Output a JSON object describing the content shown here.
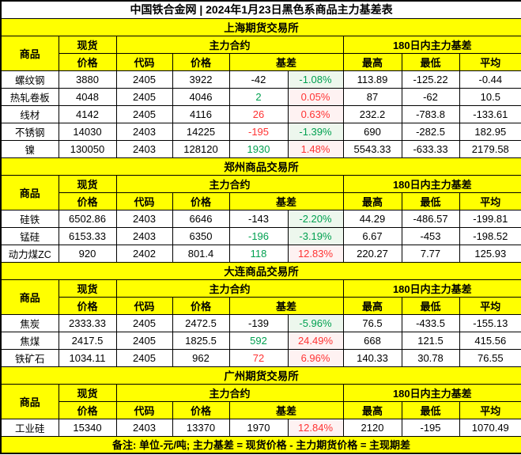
{
  "colors": {
    "yellow": "#FFFF00",
    "black": "#000000",
    "green": "#00A050",
    "red": "#FF3333",
    "green_bg": "#EDF7ED",
    "red_bg": "#FEF2F2",
    "white": "#FFFFFF"
  },
  "header": {
    "commodity": "商品",
    "spot": "现货",
    "spot_price": "价格",
    "main_contract": "主力合约",
    "code": "代码",
    "price": "价格",
    "basis": "基差",
    "range_180": "180日内主力基差",
    "high": "最高",
    "low": "最低",
    "avg": "平均"
  },
  "chart_data": {
    "type": "table",
    "title": "中国铁合金网 | 2024年1月23日黑色系商品主力基差表",
    "footer": "备注: 单位-元/吨; 主力基差 = 现货价格 - 主力期货价格 = 主现期差",
    "columns": [
      "商品",
      "现货价格",
      "主力合约代码",
      "主力合约价格",
      "基差",
      "基差%",
      "180日最高",
      "180日最低",
      "180日平均"
    ],
    "sections": [
      {
        "name": "上海期货交易所",
        "rows": [
          {
            "cells": [
              "螺纹钢",
              "3880",
              "2405",
              "3922",
              "-42",
              "-1.08%",
              "113.89",
              "-125.22",
              "-0.44"
            ],
            "basis_color": "black",
            "pct_color": "green"
          },
          {
            "cells": [
              "热轧卷板",
              "4048",
              "2405",
              "4046",
              "2",
              "0.05%",
              "87",
              "-62",
              "10.5"
            ],
            "basis_color": "green",
            "pct_color": "red"
          },
          {
            "cells": [
              "线材",
              "4142",
              "2405",
              "4116",
              "26",
              "0.63%",
              "232.2",
              "-783.8",
              "-133.61"
            ],
            "basis_color": "red",
            "pct_color": "red"
          },
          {
            "cells": [
              "不锈钢",
              "14030",
              "2403",
              "14225",
              "-195",
              "-1.39%",
              "690",
              "-282.5",
              "182.95"
            ],
            "basis_color": "red",
            "pct_color": "green"
          },
          {
            "cells": [
              "镍",
              "130050",
              "2403",
              "128120",
              "1930",
              "1.48%",
              "5543.33",
              "-633.33",
              "2179.58"
            ],
            "basis_color": "green",
            "pct_color": "red"
          }
        ]
      },
      {
        "name": "郑州商品交易所",
        "rows": [
          {
            "cells": [
              "硅铁",
              "6502.86",
              "2403",
              "6646",
              "-143",
              "-2.20%",
              "44.29",
              "-486.57",
              "-199.81"
            ],
            "basis_color": "black",
            "pct_color": "green"
          },
          {
            "cells": [
              "锰硅",
              "6153.33",
              "2403",
              "6350",
              "-196",
              "-3.19%",
              "6.67",
              "-453",
              "-198.52"
            ],
            "basis_color": "green",
            "pct_color": "green"
          },
          {
            "cells": [
              "动力煤ZC",
              "920",
              "2402",
              "801.4",
              "118",
              "12.83%",
              "220.27",
              "7.77",
              "125.93"
            ],
            "basis_color": "green",
            "pct_color": "red"
          }
        ]
      },
      {
        "name": "大连商品交易所",
        "rows": [
          {
            "cells": [
              "焦炭",
              "2333.33",
              "2405",
              "2472.5",
              "-139",
              "-5.96%",
              "76.5",
              "-433.5",
              "-155.13"
            ],
            "basis_color": "black",
            "pct_color": "green"
          },
          {
            "cells": [
              "焦煤",
              "2417.5",
              "2405",
              "1825.5",
              "592",
              "24.49%",
              "668",
              "121.5",
              "415.56"
            ],
            "basis_color": "green",
            "pct_color": "red"
          },
          {
            "cells": [
              "铁矿石",
              "1034.11",
              "2405",
              "962",
              "72",
              "6.96%",
              "140.33",
              "30.78",
              "76.55"
            ],
            "basis_color": "red",
            "pct_color": "red"
          }
        ]
      },
      {
        "name": "广州期货交易所",
        "rows": [
          {
            "cells": [
              "工业硅",
              "15340",
              "2403",
              "13370",
              "1970",
              "12.84%",
              "2120",
              "-195",
              "1070.49"
            ],
            "basis_color": "black",
            "pct_color": "red"
          }
        ]
      }
    ]
  }
}
